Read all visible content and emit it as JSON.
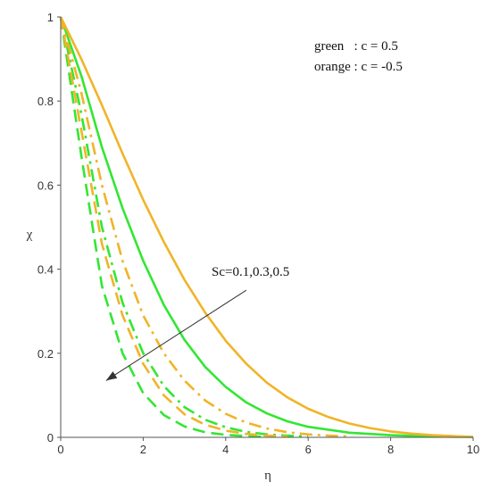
{
  "chart_data": {
    "type": "line",
    "title": "",
    "xlabel": "η",
    "ylabel": "χ",
    "xlim": [
      0,
      10
    ],
    "ylim": [
      0,
      1
    ],
    "xticks": [
      0,
      2,
      4,
      6,
      8,
      10
    ],
    "yticks": [
      0,
      0.2,
      0.4,
      0.6,
      0.8,
      1
    ],
    "x_tick_labels": [
      "0",
      "2",
      "4",
      "6",
      "8",
      "10"
    ],
    "y_tick_labels": [
      "0",
      "0.2",
      "0.4",
      "0.6",
      "0.8",
      "1"
    ],
    "grid": false,
    "legend": {
      "placement": "top-right",
      "lines": [
        "green   : c = 0.5",
        "orange : c = -0.5"
      ]
    },
    "annotation": {
      "text": "Sc=0.1,0.3,0.5",
      "arrow_from": [
        4.5,
        0.35
      ],
      "arrow_to": [
        1.1,
        0.135
      ]
    },
    "colors": {
      "green": "#33e633",
      "orange": "#f0b428",
      "axis": "#555555",
      "arrow": "#333333"
    },
    "series": [
      {
        "color": "green",
        "style": "solid",
        "x": [
          0,
          0.5,
          1,
          1.5,
          2,
          2.5,
          3,
          3.5,
          4,
          4.5,
          5,
          5.5,
          6,
          7,
          8,
          9,
          10
        ],
        "y": [
          1,
          0.86,
          0.69,
          0.545,
          0.42,
          0.315,
          0.232,
          0.168,
          0.12,
          0.083,
          0.057,
          0.038,
          0.025,
          0.011,
          0.005,
          0.002,
          0.001
        ]
      },
      {
        "color": "green",
        "style": "dashdot",
        "x": [
          0,
          0.5,
          1,
          1.5,
          2,
          2.5,
          3,
          3.5,
          4,
          4.5,
          5,
          5.5,
          6
        ],
        "y": [
          1,
          0.77,
          0.5,
          0.32,
          0.2,
          0.122,
          0.072,
          0.042,
          0.024,
          0.013,
          0.007,
          0.004,
          0.002
        ]
      },
      {
        "color": "green",
        "style": "dash",
        "x": [
          0,
          0.5,
          1,
          1.5,
          2,
          2.5,
          3,
          3.5,
          4,
          4.5,
          5
        ],
        "y": [
          1,
          0.67,
          0.36,
          0.2,
          0.105,
          0.053,
          0.026,
          0.012,
          0.006,
          0.003,
          0.001
        ]
      },
      {
        "color": "orange",
        "style": "solid",
        "x": [
          0,
          0.5,
          1,
          1.5,
          2,
          2.5,
          3,
          3.5,
          4,
          4.5,
          5,
          5.5,
          6,
          6.5,
          7,
          7.5,
          8,
          8.5,
          9,
          9.5,
          10
        ],
        "y": [
          1,
          0.9,
          0.79,
          0.675,
          0.565,
          0.465,
          0.375,
          0.297,
          0.23,
          0.175,
          0.13,
          0.095,
          0.068,
          0.048,
          0.033,
          0.022,
          0.014,
          0.009,
          0.005,
          0.003,
          0.001
        ]
      },
      {
        "color": "orange",
        "style": "dashdot",
        "x": [
          0,
          0.5,
          1,
          1.5,
          2,
          2.5,
          3,
          3.5,
          4,
          4.5,
          5,
          5.5,
          6,
          6.5,
          7
        ],
        "y": [
          1,
          0.82,
          0.6,
          0.42,
          0.29,
          0.2,
          0.135,
          0.088,
          0.056,
          0.035,
          0.021,
          0.012,
          0.007,
          0.004,
          0.002
        ]
      },
      {
        "color": "orange",
        "style": "dash",
        "x": [
          0,
          0.5,
          1,
          1.5,
          2,
          2.5,
          3,
          3.5,
          4,
          4.5,
          5,
          5.5
        ],
        "y": [
          1,
          0.73,
          0.46,
          0.29,
          0.175,
          0.1,
          0.055,
          0.03,
          0.016,
          0.008,
          0.004,
          0.002
        ]
      }
    ]
  }
}
